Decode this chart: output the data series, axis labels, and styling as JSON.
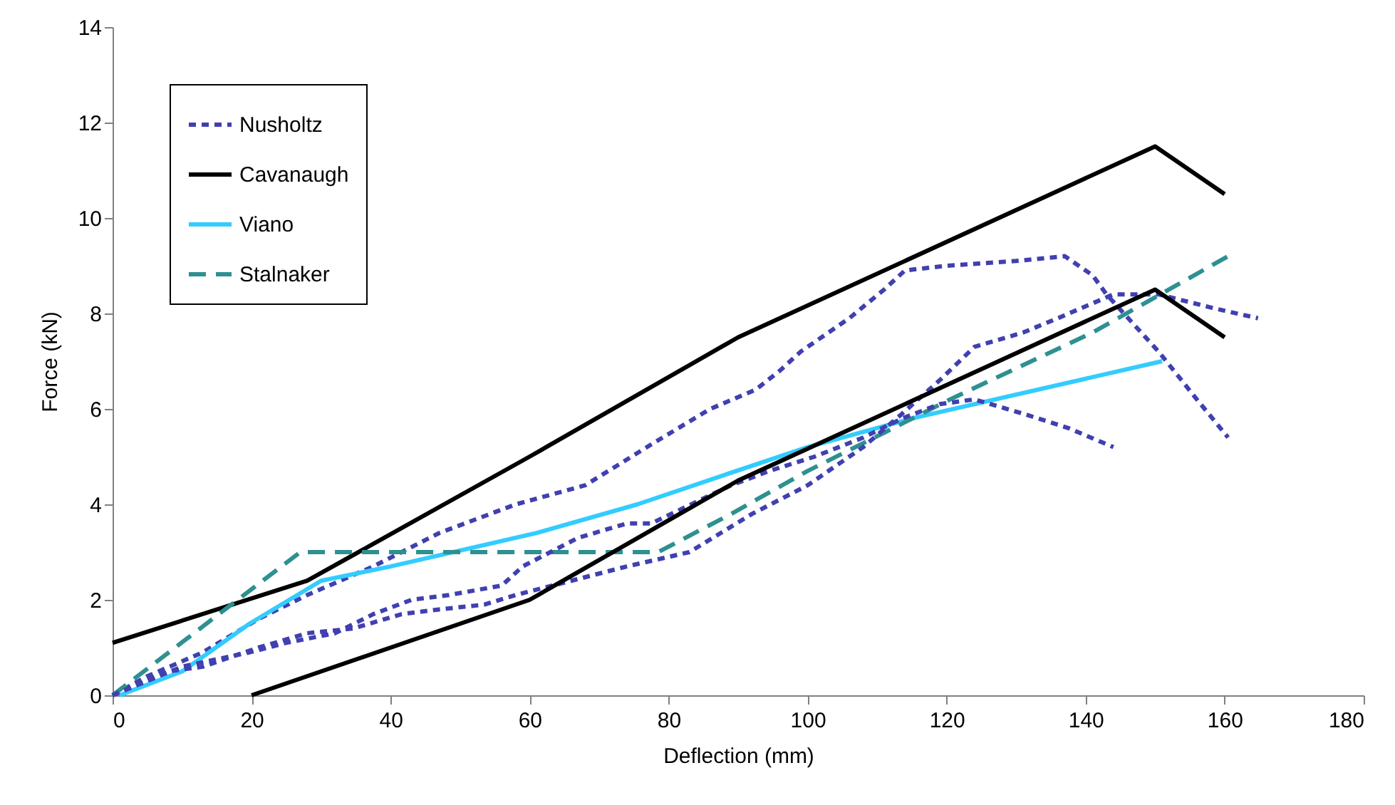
{
  "chart_data": {
    "type": "line",
    "xlabel": "Deflection (mm)",
    "ylabel": "Force (kN)",
    "xlim": [
      0,
      180
    ],
    "xticks": [
      0,
      20,
      40,
      60,
      80,
      100,
      120,
      140,
      160,
      180
    ],
    "ylim": [
      0,
      14
    ],
    "yticks": [
      0,
      2,
      4,
      6,
      8,
      10,
      12,
      14
    ],
    "grid": false,
    "legend": "top left",
    "marker": "none",
    "series": [
      {
        "name": "Nusholtz",
        "color": "#4040b0",
        "line_style": "dotted",
        "x": [
          0,
          5,
          13,
          21,
          28,
          37.5,
          47,
          58,
          68,
          78,
          86,
          92.5,
          96,
          99,
          103,
          106,
          111,
          114,
          120,
          130,
          137,
          141,
          143,
          148,
          150.5,
          156,
          160.5
        ],
        "values": [
          0,
          0.4,
          0.9,
          1.6,
          2.1,
          2.7,
          3.4,
          4,
          4.4,
          5.3,
          6,
          6.4,
          6.8,
          7.2,
          7.6,
          7.9,
          8.5,
          8.9,
          9,
          9.1,
          9.2,
          8.8,
          8.4,
          7.6,
          7.2,
          6.2,
          5.4
        ]
      },
      {
        "name": "Cavanaugh",
        "color": "#000000",
        "line_style": "solid",
        "x": [
          0,
          28,
          60,
          90,
          150,
          160
        ],
        "values": [
          1.1,
          2.4,
          5,
          7.5,
          11.5,
          10.5
        ]
      },
      {
        "name": "Viano",
        "color": "#33ccff",
        "line_style": "solid",
        "x": [
          1,
          10,
          19.7,
          30,
          40,
          61,
          75.5,
          87.7,
          100,
          115,
          151
        ],
        "values": [
          0,
          0.5,
          1.5,
          2.4,
          2.7,
          3.4,
          4,
          4.6,
          5.2,
          5.8,
          7
        ]
      },
      {
        "name": "Stalnaker",
        "color": "#2e9090",
        "line_style": "dashed",
        "x": [
          0,
          27,
          78.5,
          89,
          100,
          111,
          120.5,
          141,
          160.5
        ],
        "values": [
          0,
          3,
          3,
          3.8,
          4.7,
          5.5,
          6.2,
          7.6,
          9.2
        ]
      },
      {
        "color": "#4040b0",
        "line_style": "dotted",
        "x": [
          0,
          8,
          13,
          17,
          21,
          28,
          34.6,
          41.6,
          47,
          53.5,
          58,
          74,
          83,
          92,
          100,
          108,
          113.6,
          119,
          124,
          131,
          136,
          144,
          150.5,
          158.7,
          164.8
        ],
        "values": [
          0,
          0.5,
          0.6,
          0.8,
          1,
          1.3,
          1.4,
          1.7,
          1.8,
          1.9,
          2.1,
          2.7,
          3,
          3.8,
          4.4,
          5.2,
          5.9,
          6.6,
          7.3,
          7.6,
          7.9,
          8.4,
          8.4,
          8.1,
          7.9
        ]
      },
      {
        "color": "#4040b0",
        "line_style": "dotted",
        "x": [
          0,
          10,
          19.7,
          25,
          32,
          37.5,
          43,
          48.4,
          56,
          59,
          67,
          74,
          77.5,
          89,
          94.5,
          101,
          108,
          113.6,
          119,
          124,
          131,
          137.5,
          144
        ],
        "values": [
          0,
          0.6,
          0.9,
          1.1,
          1.3,
          1.7,
          2,
          2.1,
          2.3,
          2.7,
          3.3,
          3.6,
          3.6,
          4.4,
          4.7,
          5,
          5.4,
          5.8,
          6.1,
          6.2,
          5.9,
          5.6,
          5.2
        ]
      },
      {
        "color": "#000000",
        "line_style": "solid",
        "x": [
          20,
          60,
          90,
          150,
          160
        ],
        "values": [
          0,
          2,
          4.5,
          8.5,
          7.5
        ]
      }
    ]
  }
}
